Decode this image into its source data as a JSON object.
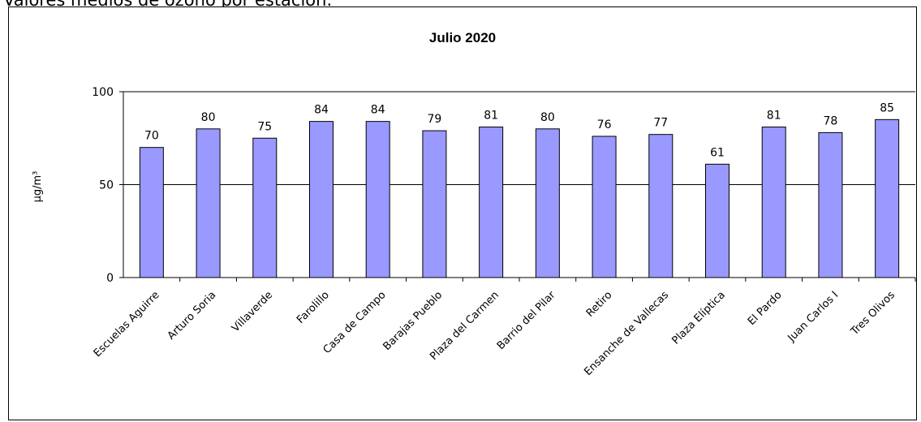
{
  "caption": "Valores medios de ozono por estación.",
  "chart_data": {
    "type": "bar",
    "title": "Julio 2020",
    "xlabel": "",
    "ylabel": "µg/m³",
    "ylim": [
      0,
      100
    ],
    "yticks": [
      0,
      50,
      100
    ],
    "grid": "horizontal at 50 and 100",
    "legend": "none",
    "bar_color": "#9999ff",
    "categories": [
      "Escuelas Aguirre",
      "Arturo Soria",
      "Villaverde",
      "Farolillo",
      "Casa de Campo",
      "Barajas Pueblo",
      "Plaza del Carmen",
      "Barrio del Pilar",
      "Retiro",
      "Ensanche de Vallecas",
      "Plaza Elíptica",
      "El Pardo",
      "Juan Carlos I",
      "Tres Olivos"
    ],
    "values": [
      70,
      80,
      75,
      84,
      84,
      79,
      81,
      80,
      76,
      77,
      61,
      81,
      78,
      85
    ]
  }
}
